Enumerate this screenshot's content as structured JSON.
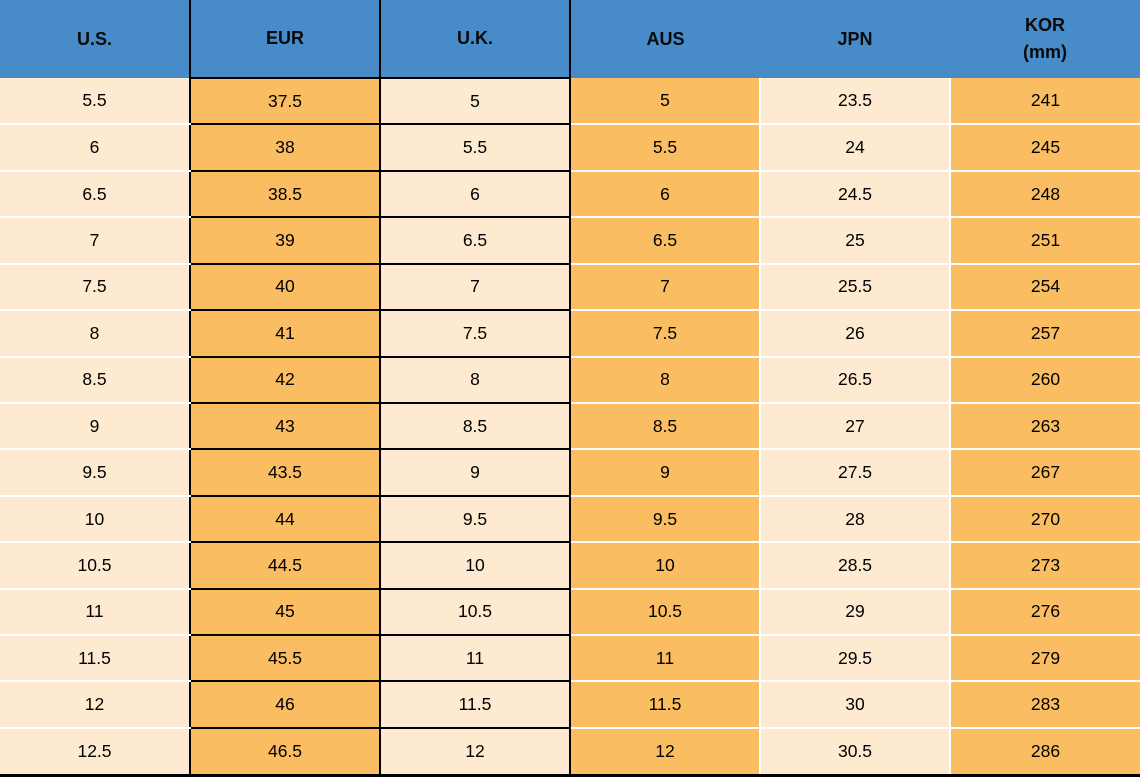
{
  "colors": {
    "header_bg": "#478BC9",
    "header_text": "#0a0a0a",
    "orange_cell": "#FBBD62",
    "cream_cell": "#FDEAD0",
    "black_border": "#000000",
    "white_separator": "#FFFFFF",
    "cell_text": "#000000"
  },
  "chart_data": {
    "type": "table",
    "columns": [
      {
        "label": "U.S.",
        "sub": ""
      },
      {
        "label": "EUR",
        "sub": ""
      },
      {
        "label": "U.K.",
        "sub": ""
      },
      {
        "label": "AUS",
        "sub": ""
      },
      {
        "label": "JPN",
        "sub": ""
      },
      {
        "label": "KOR",
        "sub": "(mm)"
      }
    ],
    "rows": [
      [
        "5.5",
        "37.5",
        "5",
        "5",
        "23.5",
        "241"
      ],
      [
        "6",
        "38",
        "5.5",
        "5.5",
        "24",
        "245"
      ],
      [
        "6.5",
        "38.5",
        "6",
        "6",
        "24.5",
        "248"
      ],
      [
        "7",
        "39",
        "6.5",
        "6.5",
        "25",
        "251"
      ],
      [
        "7.5",
        "40",
        "7",
        "7",
        "25.5",
        "254"
      ],
      [
        "8",
        "41",
        "7.5",
        "7.5",
        "26",
        "257"
      ],
      [
        "8.5",
        "42",
        "8",
        "8",
        "26.5",
        "260"
      ],
      [
        "9",
        "43",
        "8.5",
        "8.5",
        "27",
        "263"
      ],
      [
        "9.5",
        "43.5",
        "9",
        "9",
        "27.5",
        "267"
      ],
      [
        "10",
        "44",
        "9.5",
        "9.5",
        "28",
        "270"
      ],
      [
        "10.5",
        "44.5",
        "10",
        "10",
        "28.5",
        "273"
      ],
      [
        "11",
        "45",
        "10.5",
        "10.5",
        "29",
        "276"
      ],
      [
        "11.5",
        "45.5",
        "11",
        "11",
        "29.5",
        "279"
      ],
      [
        "12",
        "46",
        "11.5",
        "11.5",
        "30",
        "283"
      ],
      [
        "12.5",
        "46.5",
        "12",
        "12",
        "30.5",
        "286"
      ]
    ]
  }
}
